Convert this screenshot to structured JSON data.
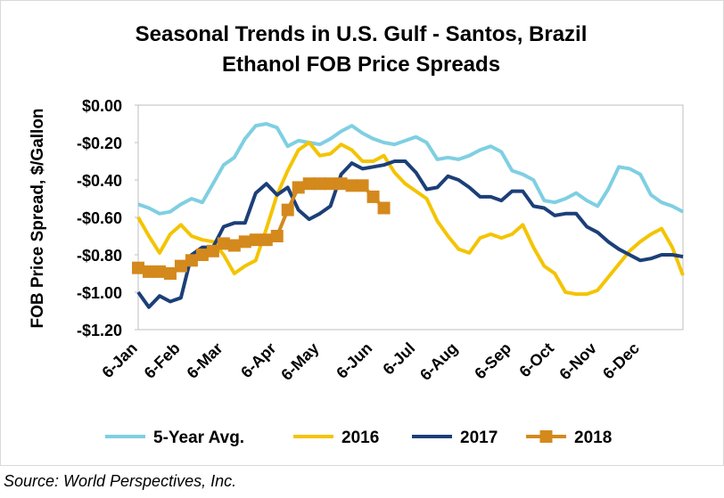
{
  "chart_data": {
    "type": "line",
    "title": [
      "Seasonal Trends in U.S. Gulf - Santos, Brazil",
      "Ethanol FOB Price Spreads"
    ],
    "y_label": "FOB Price Spread, $/Gallon",
    "source": "Source: World Perspectives, Inc.",
    "categories": [
      "6-Jan",
      null,
      null,
      null,
      "6-Feb",
      null,
      null,
      null,
      "6-Mar",
      null,
      null,
      null,
      null,
      "6-Apr",
      null,
      null,
      null,
      "6-May",
      null,
      null,
      null,
      null,
      "6-Jun",
      null,
      null,
      null,
      "6-Jul",
      null,
      null,
      null,
      "6-Aug",
      null,
      null,
      null,
      null,
      "6-Sep",
      null,
      null,
      null,
      "6-Oct",
      null,
      null,
      null,
      "6-Nov",
      null,
      null,
      null,
      "6-Dec",
      null,
      null,
      null,
      null
    ],
    "ylim": [
      -1.2,
      0
    ],
    "yticks": [
      {
        "value": 0,
        "label": "$0.00"
      },
      {
        "value": -0.2,
        "label": "-$0.20"
      },
      {
        "value": -0.4,
        "label": "-$0.40"
      },
      {
        "value": -0.6,
        "label": "-$0.60"
      },
      {
        "value": -0.8,
        "label": "-$0.80"
      },
      {
        "value": -1.0,
        "label": "-$1.00"
      },
      {
        "value": -1.2,
        "label": "-$1.20"
      }
    ],
    "grid": false,
    "legend": "bottom",
    "series": [
      {
        "name": "5-Year Avg.",
        "color": "#7fcfe2",
        "marker": false,
        "values": [
          -0.53,
          -0.55,
          -0.58,
          -0.57,
          -0.53,
          -0.5,
          -0.52,
          -0.42,
          -0.32,
          -0.28,
          -0.18,
          -0.11,
          -0.1,
          -0.12,
          -0.22,
          -0.19,
          -0.2,
          -0.21,
          -0.18,
          -0.14,
          -0.11,
          -0.15,
          -0.18,
          -0.2,
          -0.21,
          -0.19,
          -0.17,
          -0.2,
          -0.29,
          -0.28,
          -0.29,
          -0.27,
          -0.24,
          -0.22,
          -0.25,
          -0.35,
          -0.37,
          -0.4,
          -0.51,
          -0.52,
          -0.5,
          -0.47,
          -0.51,
          -0.54,
          -0.45,
          -0.33,
          -0.34,
          -0.37,
          -0.48,
          -0.52,
          -0.54,
          -0.57
        ]
      },
      {
        "name": "2016",
        "color": "#f4c400",
        "marker": false,
        "values": [
          -0.6,
          -0.7,
          -0.79,
          -0.69,
          -0.64,
          -0.7,
          -0.72,
          -0.73,
          -0.8,
          -0.9,
          -0.86,
          -0.83,
          -0.66,
          -0.48,
          -0.35,
          -0.24,
          -0.2,
          -0.27,
          -0.26,
          -0.21,
          -0.24,
          -0.3,
          -0.3,
          -0.27,
          -0.36,
          -0.42,
          -0.46,
          -0.5,
          -0.62,
          -0.7,
          -0.77,
          -0.79,
          -0.71,
          -0.69,
          -0.71,
          -0.69,
          -0.64,
          -0.76,
          -0.86,
          -0.9,
          -1.0,
          -1.01,
          -1.01,
          -0.99,
          -0.92,
          -0.85,
          -0.78,
          -0.73,
          -0.69,
          -0.66,
          -0.76,
          -0.91
        ]
      },
      {
        "name": "2017",
        "color": "#1c3f78",
        "marker": false,
        "values": [
          -1.0,
          -1.08,
          -1.02,
          -1.05,
          -1.03,
          -0.8,
          -0.76,
          -0.76,
          -0.65,
          -0.63,
          -0.63,
          -0.47,
          -0.42,
          -0.48,
          -0.44,
          -0.56,
          -0.61,
          -0.58,
          -0.54,
          -0.37,
          -0.31,
          -0.34,
          -0.33,
          -0.32,
          -0.3,
          -0.3,
          -0.36,
          -0.45,
          -0.44,
          -0.38,
          -0.4,
          -0.44,
          -0.49,
          -0.49,
          -0.51,
          -0.46,
          -0.46,
          -0.54,
          -0.55,
          -0.59,
          -0.58,
          -0.58,
          -0.65,
          -0.68,
          -0.73,
          -0.77,
          -0.8,
          -0.83,
          -0.82,
          -0.8,
          -0.8,
          -0.81
        ]
      },
      {
        "name": "2018",
        "color": "#d4891c",
        "marker": true,
        "values": [
          -0.87,
          -0.89,
          -0.89,
          -0.9,
          -0.86,
          -0.83,
          -0.8,
          -0.78,
          -0.74,
          -0.75,
          -0.73,
          -0.72,
          -0.72,
          -0.7,
          -0.56,
          -0.44,
          -0.42,
          -0.42,
          -0.42,
          -0.42,
          -0.43,
          -0.43,
          -0.49,
          -0.55,
          null,
          null,
          null,
          null,
          null,
          null,
          null,
          null,
          null,
          null,
          null,
          null,
          null,
          null,
          null,
          null,
          null,
          null,
          null,
          null,
          null,
          null,
          null,
          null,
          null,
          null,
          null,
          null
        ]
      }
    ]
  }
}
